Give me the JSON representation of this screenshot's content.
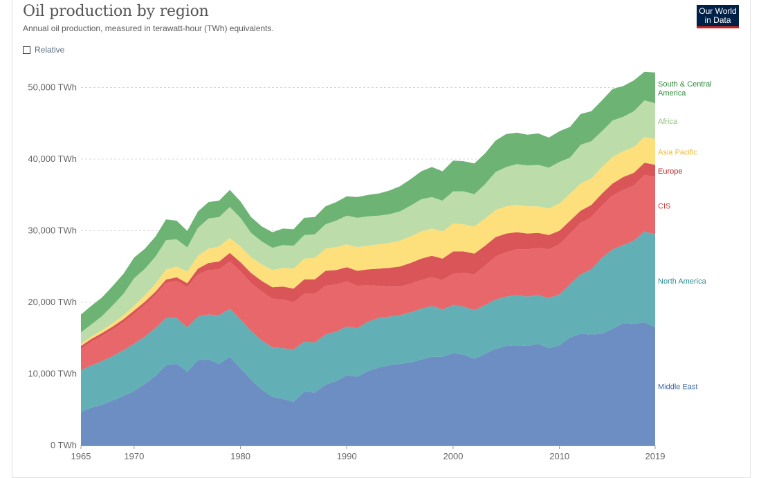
{
  "title": "Oil production by region",
  "subtitle": "Annual oil production, measured in terawatt-hour (TWh) equivalents.",
  "relative_toggle": {
    "label": "Relative",
    "checked": false
  },
  "logo": {
    "line1": "Our World",
    "line2": "in Data"
  },
  "chart_data": {
    "type": "area",
    "stacked": true,
    "title": "Oil production by region",
    "subtitle": "Annual oil production, measured in terawatt-hour (TWh) equivalents.",
    "x_ticks": [
      "1965",
      "1970",
      "1980",
      "1990",
      "2000",
      "2010",
      "2019"
    ],
    "y_ticks": [
      "0 TWh",
      "10,000 TWh",
      "20,000 TWh",
      "30,000 TWh",
      "40,000 TWh",
      "50,000 TWh"
    ],
    "y_tick_values": [
      0,
      10000,
      20000,
      30000,
      40000,
      50000
    ],
    "xlim": [
      1965,
      2019
    ],
    "ylim": [
      0,
      56000
    ],
    "grid": "horizontal dashed",
    "legend": "right, inline labels",
    "x": [
      1965,
      1966,
      1967,
      1968,
      1969,
      1970,
      1971,
      1972,
      1973,
      1974,
      1975,
      1976,
      1977,
      1978,
      1979,
      1980,
      1981,
      1982,
      1983,
      1984,
      1985,
      1986,
      1987,
      1988,
      1989,
      1990,
      1991,
      1992,
      1993,
      1994,
      1995,
      1996,
      1997,
      1998,
      1999,
      2000,
      2001,
      2002,
      2003,
      2004,
      2005,
      2006,
      2007,
      2008,
      2009,
      2010,
      2011,
      2012,
      2013,
      2014,
      2015,
      2016,
      2017,
      2018,
      2019
    ],
    "series": [
      {
        "name": "Middle East",
        "color": "#6d8ec3",
        "values": [
          4700,
          5300,
          5700,
          6300,
          6900,
          7600,
          8600,
          9700,
          11200,
          11400,
          10300,
          11900,
          12000,
          11400,
          12400,
          10800,
          9200,
          7800,
          6800,
          6500,
          6100,
          7500,
          7400,
          8500,
          9000,
          9800,
          9600,
          10400,
          10900,
          11200,
          11400,
          11600,
          12000,
          12400,
          12400,
          12900,
          12700,
          12100,
          12800,
          13500,
          13900,
          14000,
          13900,
          14200,
          13600,
          14000,
          15100,
          15600,
          15500,
          15600,
          16300,
          17100,
          17000,
          17200,
          16500
        ]
      },
      {
        "name": "North America",
        "color": "#62b0b5",
        "values": [
          5800,
          5900,
          6100,
          6200,
          6400,
          6600,
          6600,
          6700,
          6600,
          6400,
          6200,
          6100,
          6300,
          6800,
          6700,
          6800,
          6800,
          6900,
          6900,
          7100,
          7300,
          7000,
          7000,
          7000,
          6900,
          6800,
          6800,
          6900,
          6900,
          6800,
          6800,
          7000,
          7100,
          7100,
          6600,
          6700,
          6700,
          6800,
          6800,
          6900,
          6900,
          7000,
          6900,
          6800,
          7000,
          7100,
          7400,
          8300,
          9100,
          10600,
          11100,
          10900,
          11600,
          12700,
          13000
        ]
      },
      {
        "name": "CIS",
        "color": "#e8676a",
        "values": [
          3000,
          3300,
          3500,
          3700,
          3900,
          4200,
          4400,
          4600,
          4900,
          5200,
          5600,
          5900,
          6200,
          6400,
          6600,
          6700,
          6700,
          6800,
          6800,
          6800,
          6600,
          6700,
          6800,
          6800,
          6600,
          6300,
          5900,
          5100,
          4500,
          4200,
          4000,
          4000,
          4000,
          4000,
          4100,
          4400,
          4700,
          5000,
          5500,
          6000,
          6200,
          6400,
          6600,
          6600,
          6800,
          7000,
          7100,
          7200,
          7300,
          7300,
          7500,
          7700,
          7700,
          7900,
          8000
        ]
      },
      {
        "name": "Europe",
        "color": "#da5558",
        "values": [
          400,
          410,
          420,
          430,
          440,
          450,
          460,
          470,
          480,
          500,
          570,
          800,
          1000,
          1100,
          1200,
          1300,
          1400,
          1500,
          1600,
          1800,
          1900,
          2000,
          2000,
          2100,
          2000,
          2000,
          2100,
          2200,
          2400,
          2600,
          2800,
          2900,
          3000,
          3000,
          3000,
          3100,
          3000,
          2900,
          2800,
          2700,
          2600,
          2400,
          2200,
          2100,
          2000,
          1900,
          1800,
          1700,
          1700,
          1700,
          1700,
          1800,
          1800,
          1700,
          1700
        ]
      },
      {
        "name": "Asia Pacific",
        "color": "#fddf7c",
        "values": [
          300,
          330,
          380,
          460,
          550,
          700,
          900,
          1100,
          1400,
          1500,
          1600,
          1800,
          2000,
          2100,
          2100,
          2200,
          2200,
          2300,
          2400,
          2600,
          2800,
          2900,
          3000,
          3100,
          3200,
          3200,
          3300,
          3300,
          3400,
          3500,
          3600,
          3700,
          3800,
          3800,
          3800,
          3900,
          3800,
          3800,
          3800,
          3800,
          3800,
          3800,
          3800,
          3700,
          3700,
          3800,
          3800,
          3800,
          3700,
          3700,
          3700,
          3600,
          3600,
          3600,
          3600
        ]
      },
      {
        "name": "Africa",
        "color": "#bcdcaa",
        "values": [
          1600,
          1700,
          2000,
          2500,
          3000,
          3800,
          3700,
          3800,
          4100,
          3800,
          3400,
          3900,
          4200,
          4100,
          4300,
          4000,
          3400,
          3200,
          3100,
          3200,
          3200,
          3300,
          3300,
          3400,
          3700,
          4000,
          4100,
          4100,
          4000,
          4000,
          4100,
          4300,
          4500,
          4400,
          4300,
          4500,
          4600,
          4500,
          4800,
          5300,
          5500,
          5700,
          5700,
          5800,
          5700,
          5800,
          5000,
          5400,
          5200,
          5000,
          5100,
          4800,
          5000,
          5100,
          5000
        ]
      },
      {
        "name": "South & Central America",
        "color": "#6db474",
        "values": [
          2500,
          2600,
          2600,
          2700,
          2800,
          2900,
          2800,
          2800,
          2900,
          2600,
          2300,
          2300,
          2300,
          2300,
          2400,
          2300,
          2200,
          2100,
          2200,
          2300,
          2300,
          2400,
          2400,
          2500,
          2600,
          2700,
          2900,
          3000,
          3100,
          3300,
          3500,
          3700,
          3900,
          4200,
          4100,
          4300,
          4200,
          4300,
          4300,
          4400,
          4600,
          4400,
          4300,
          4400,
          4200,
          4300,
          4300,
          4300,
          4200,
          4300,
          4400,
          4300,
          4300,
          4000,
          4300
        ]
      }
    ]
  }
}
